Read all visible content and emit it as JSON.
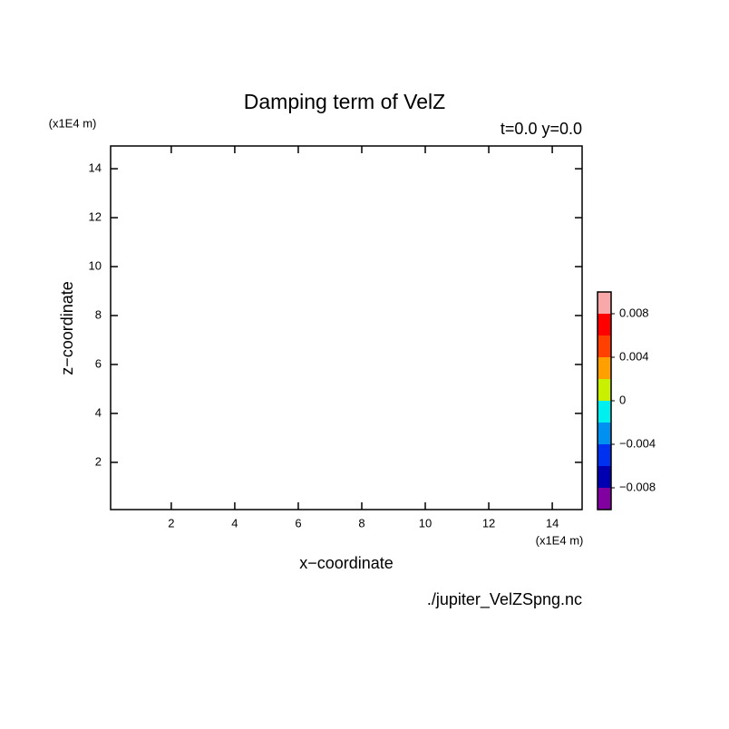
{
  "chart_data": {
    "type": "contour",
    "title": "Damping term of VelZ",
    "subtitle": "t=0.0 y=0.0",
    "x_label": "x−coordinate",
    "y_label": "z−coordinate",
    "x_unit": "(x1E4 m)",
    "y_unit": "(x1E4 m)",
    "source": "./jupiter_VelZSpng.nc",
    "xlim": [
      0.09,
      14.94
    ],
    "ylim": [
      0.07,
      14.93
    ],
    "xticks": [
      2,
      4,
      6,
      8,
      10,
      12,
      14
    ],
    "yticks": [
      2,
      4,
      6,
      8,
      10,
      12,
      14
    ],
    "colorbar": {
      "clim": [
        -0.01,
        0.01
      ],
      "colors": [
        "#8000a0",
        "#0000b0",
        "#0030f0",
        "#0090f0",
        "#00f0f0",
        "#c8f000",
        "#ffa000",
        "#ff4000",
        "#ff0000",
        "#f8a8a8"
      ],
      "ticks": [
        {
          "value": -0.008,
          "label": "−0.008"
        },
        {
          "value": -0.004,
          "label": "−0.004"
        },
        0,
        0.004,
        0.008
      ]
    }
  }
}
